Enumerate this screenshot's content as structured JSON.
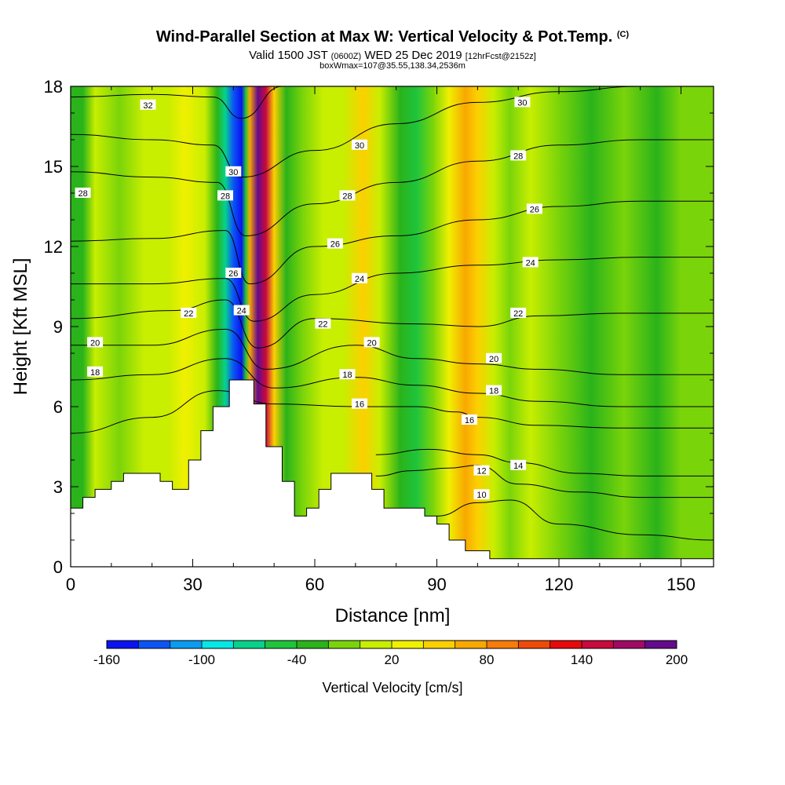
{
  "header": {
    "title": "Wind-Parallel Section at Max W: Vertical Velocity & Pot.Temp.",
    "title_suffix": "(C)",
    "subtitle_a": "Valid 1500 JST",
    "subtitle_b": "(0600Z)",
    "subtitle_c": "WED 25 Dec 2019",
    "subtitle_d": "[12hrFcst@2152z]",
    "subtitle2": "boxWmax=107@35.55,138.34,2536m"
  },
  "chart_data": {
    "type": "heatmap",
    "xlabel": "Distance [nm]",
    "ylabel": "Height [Kft MSL]",
    "xlim": [
      0,
      158
    ],
    "ylim": [
      0,
      18
    ],
    "x_ticks": [
      0,
      30,
      60,
      90,
      120,
      150
    ],
    "y_ticks": [
      0,
      3,
      6,
      9,
      12,
      15,
      18
    ],
    "grid": false,
    "colorbar": {
      "label": "Vertical Velocity [cm/s]",
      "bins": [
        -160,
        -140,
        -120,
        -100,
        -80,
        -60,
        -40,
        -20,
        0,
        20,
        40,
        60,
        80,
        100,
        120,
        140,
        160,
        180,
        200
      ],
      "tick_labels": [
        "-160",
        "-100",
        "-40",
        "20",
        "80",
        "140",
        "200"
      ],
      "colors": [
        "#0a14f0",
        "#0b55f5",
        "#0a9cf0",
        "#08e6e6",
        "#06d28c",
        "#1ec43c",
        "#2ab31a",
        "#7ad40a",
        "#c8ee00",
        "#f0f000",
        "#fcd000",
        "#f8a800",
        "#f87c0a",
        "#f04a0a",
        "#e80a0a",
        "#c80a3c",
        "#a00a64",
        "#640a8c"
      ]
    },
    "terrain": [
      [
        0,
        2.2
      ],
      [
        3,
        2.2
      ],
      [
        3,
        2.6
      ],
      [
        6,
        2.6
      ],
      [
        6,
        2.9
      ],
      [
        10,
        2.9
      ],
      [
        10,
        3.2
      ],
      [
        13,
        3.2
      ],
      [
        13,
        3.5
      ],
      [
        22,
        3.5
      ],
      [
        22,
        3.2
      ],
      [
        25,
        3.2
      ],
      [
        25,
        2.9
      ],
      [
        29,
        2.9
      ],
      [
        29,
        4.0
      ],
      [
        32,
        4.0
      ],
      [
        32,
        5.1
      ],
      [
        35,
        5.1
      ],
      [
        35,
        6.0
      ],
      [
        39,
        6.0
      ],
      [
        39,
        7.0
      ],
      [
        45,
        7.0
      ],
      [
        45,
        6.1
      ],
      [
        48,
        6.1
      ],
      [
        48,
        4.5
      ],
      [
        52,
        4.5
      ],
      [
        52,
        3.2
      ],
      [
        55,
        3.2
      ],
      [
        55,
        1.9
      ],
      [
        58,
        1.9
      ],
      [
        58,
        2.2
      ],
      [
        61,
        2.2
      ],
      [
        61,
        2.9
      ],
      [
        64,
        2.9
      ],
      [
        64,
        3.5
      ],
      [
        74,
        3.5
      ],
      [
        74,
        2.9
      ],
      [
        77,
        2.9
      ],
      [
        77,
        2.2
      ],
      [
        87,
        2.2
      ],
      [
        87,
        1.9
      ],
      [
        90,
        1.9
      ],
      [
        90,
        1.6
      ],
      [
        93,
        1.6
      ],
      [
        93,
        1.0
      ],
      [
        97,
        1.0
      ],
      [
        97,
        0.6
      ],
      [
        103,
        0.6
      ],
      [
        103,
        0.3
      ],
      [
        158,
        0.3
      ]
    ],
    "w_field": [
      {
        "x": 0,
        "w": -25
      },
      {
        "x": 3,
        "w": -30
      },
      {
        "x": 6,
        "w": 0
      },
      {
        "x": 12,
        "w": -10
      },
      {
        "x": 18,
        "w": 5
      },
      {
        "x": 24,
        "w": 0
      },
      {
        "x": 28,
        "w": 20
      },
      {
        "x": 33,
        "w": 0
      },
      {
        "x": 36,
        "w": -40
      },
      {
        "x": 38,
        "w": -80
      },
      {
        "x": 40,
        "w": -130
      },
      {
        "x": 42,
        "w": -160
      },
      {
        "x": 43,
        "w": -60
      },
      {
        "x": 44,
        "w": 60
      },
      {
        "x": 46,
        "w": 200
      },
      {
        "x": 48,
        "w": 140
      },
      {
        "x": 50,
        "w": 40
      },
      {
        "x": 53,
        "w": -30
      },
      {
        "x": 57,
        "w": -10
      },
      {
        "x": 62,
        "w": 0
      },
      {
        "x": 67,
        "w": 10
      },
      {
        "x": 72,
        "w": 40
      },
      {
        "x": 76,
        "w": 0
      },
      {
        "x": 81,
        "w": -40
      },
      {
        "x": 85,
        "w": -50
      },
      {
        "x": 89,
        "w": -20
      },
      {
        "x": 93,
        "w": 20
      },
      {
        "x": 97,
        "w": 60
      },
      {
        "x": 100,
        "w": 40
      },
      {
        "x": 104,
        "w": 0
      },
      {
        "x": 108,
        "w": -10
      },
      {
        "x": 113,
        "w": 0
      },
      {
        "x": 120,
        "w": -20
      },
      {
        "x": 128,
        "w": -30
      },
      {
        "x": 136,
        "w": -20
      },
      {
        "x": 144,
        "w": -25
      },
      {
        "x": 150,
        "w": -20
      },
      {
        "x": 158,
        "w": -15
      }
    ],
    "theta_contours": [
      {
        "label": "10",
        "points": [
          [
            90,
            1.9
          ],
          [
            100,
            2.4
          ],
          [
            108,
            2.5
          ],
          [
            120,
            1.6
          ],
          [
            140,
            1.2
          ],
          [
            158,
            1.0
          ]
        ]
      },
      {
        "label": "12",
        "points": [
          [
            75,
            3.4
          ],
          [
            84,
            3.6
          ],
          [
            93,
            3.7
          ],
          [
            100,
            3.8
          ],
          [
            110,
            3.1
          ],
          [
            125,
            2.8
          ],
          [
            140,
            2.6
          ],
          [
            158,
            2.6
          ]
        ]
      },
      {
        "label": "14",
        "points": [
          [
            75,
            4.2
          ],
          [
            88,
            4.4
          ],
          [
            100,
            4.2
          ],
          [
            110,
            3.9
          ],
          [
            125,
            3.5
          ],
          [
            140,
            3.4
          ],
          [
            158,
            3.4
          ]
        ]
      },
      {
        "label": "16",
        "points": [
          [
            0,
            5.0
          ],
          [
            20,
            5.6
          ],
          [
            36,
            6.6
          ],
          [
            50,
            6.1
          ],
          [
            70,
            6.0
          ],
          [
            85,
            6.0
          ],
          [
            95,
            5.8
          ],
          [
            100,
            5.6
          ],
          [
            115,
            5.3
          ],
          [
            135,
            5.2
          ],
          [
            158,
            5.2
          ]
        ]
      },
      {
        "label": "18",
        "points": [
          [
            0,
            7.0
          ],
          [
            20,
            7.2
          ],
          [
            38,
            7.8
          ],
          [
            50,
            6.7
          ],
          [
            70,
            7.1
          ],
          [
            85,
            6.8
          ],
          [
            100,
            6.5
          ],
          [
            115,
            6.2
          ],
          [
            135,
            6.0
          ],
          [
            158,
            6.0
          ]
        ]
      },
      {
        "label": "20",
        "points": [
          [
            0,
            8.3
          ],
          [
            20,
            8.3
          ],
          [
            38,
            8.9
          ],
          [
            48,
            7.4
          ],
          [
            70,
            8.3
          ],
          [
            85,
            7.8
          ],
          [
            100,
            7.6
          ],
          [
            115,
            7.4
          ],
          [
            135,
            7.2
          ],
          [
            158,
            7.2
          ]
        ]
      },
      {
        "label": "22",
        "points": [
          [
            0,
            9.3
          ],
          [
            25,
            9.6
          ],
          [
            38,
            10.0
          ],
          [
            46,
            8.2
          ],
          [
            60,
            9.3
          ],
          [
            85,
            9.1
          ],
          [
            100,
            9.0
          ],
          [
            115,
            9.4
          ],
          [
            135,
            9.5
          ],
          [
            158,
            9.5
          ]
        ]
      },
      {
        "label": "24",
        "points": [
          [
            0,
            10.6
          ],
          [
            20,
            10.6
          ],
          [
            38,
            10.8
          ],
          [
            45,
            9.2
          ],
          [
            60,
            10.2
          ],
          [
            80,
            11.0
          ],
          [
            100,
            11.3
          ],
          [
            120,
            11.5
          ],
          [
            140,
            11.6
          ],
          [
            158,
            11.6
          ]
        ]
      },
      {
        "label": "26",
        "points": [
          [
            0,
            12.2
          ],
          [
            20,
            12.3
          ],
          [
            38,
            12.6
          ],
          [
            44,
            10.6
          ],
          [
            60,
            12.0
          ],
          [
            80,
            12.4
          ],
          [
            100,
            13.0
          ],
          [
            120,
            13.5
          ],
          [
            140,
            13.7
          ],
          [
            158,
            13.7
          ]
        ]
      },
      {
        "label": "28",
        "points": [
          [
            0,
            14.8
          ],
          [
            20,
            14.6
          ],
          [
            36,
            14.4
          ],
          [
            43,
            12.4
          ],
          [
            60,
            13.6
          ],
          [
            80,
            14.4
          ],
          [
            100,
            15.2
          ],
          [
            120,
            15.8
          ],
          [
            140,
            16.0
          ],
          [
            158,
            16.0
          ]
        ]
      },
      {
        "label": "30",
        "points": [
          [
            0,
            16.2
          ],
          [
            20,
            16.0
          ],
          [
            35,
            15.8
          ],
          [
            42,
            14.6
          ],
          [
            60,
            15.6
          ],
          [
            80,
            16.6
          ],
          [
            100,
            17.4
          ],
          [
            120,
            17.8
          ],
          [
            140,
            18.0
          ],
          [
            158,
            18.0
          ]
        ]
      },
      {
        "label": "32",
        "points": [
          [
            0,
            17.6
          ],
          [
            20,
            17.7
          ],
          [
            35,
            17.6
          ],
          [
            42,
            16.8
          ],
          [
            52,
            18.0
          ]
        ]
      }
    ],
    "contour_labels": [
      {
        "text": "32",
        "x": 19,
        "y": 17.3
      },
      {
        "text": "28",
        "x": 3,
        "y": 14.0
      },
      {
        "text": "30",
        "x": 40,
        "y": 14.8
      },
      {
        "text": "28",
        "x": 38,
        "y": 13.9
      },
      {
        "text": "26",
        "x": 40,
        "y": 11.0
      },
      {
        "text": "24",
        "x": 42,
        "y": 9.6
      },
      {
        "text": "22",
        "x": 29,
        "y": 9.5
      },
      {
        "text": "20",
        "x": 6,
        "y": 8.4
      },
      {
        "text": "18",
        "x": 6,
        "y": 7.3
      },
      {
        "text": "30",
        "x": 71,
        "y": 15.8
      },
      {
        "text": "28",
        "x": 68,
        "y": 13.9
      },
      {
        "text": "26",
        "x": 65,
        "y": 12.1
      },
      {
        "text": "24",
        "x": 71,
        "y": 10.8
      },
      {
        "text": "22",
        "x": 62,
        "y": 9.1
      },
      {
        "text": "20",
        "x": 74,
        "y": 8.4
      },
      {
        "text": "18",
        "x": 68,
        "y": 7.2
      },
      {
        "text": "16",
        "x": 71,
        "y": 6.1
      },
      {
        "text": "30",
        "x": 111,
        "y": 17.4
      },
      {
        "text": "28",
        "x": 110,
        "y": 15.4
      },
      {
        "text": "26",
        "x": 114,
        "y": 13.4
      },
      {
        "text": "24",
        "x": 113,
        "y": 11.4
      },
      {
        "text": "22",
        "x": 110,
        "y": 9.5
      },
      {
        "text": "20",
        "x": 104,
        "y": 7.8
      },
      {
        "text": "18",
        "x": 104,
        "y": 6.6
      },
      {
        "text": "16",
        "x": 98,
        "y": 5.5
      },
      {
        "text": "14",
        "x": 110,
        "y": 3.8
      },
      {
        "text": "12",
        "x": 101,
        "y": 3.6
      },
      {
        "text": "10",
        "x": 101,
        "y": 2.7
      }
    ]
  }
}
